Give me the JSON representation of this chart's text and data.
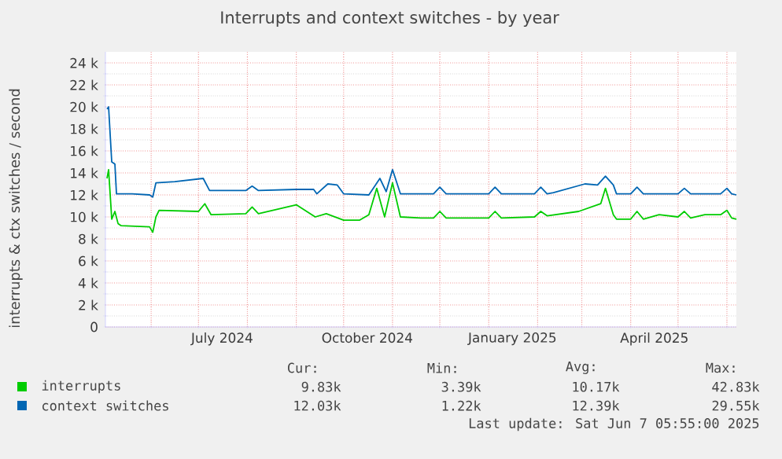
{
  "chart_data": {
    "type": "line",
    "title": "Interrupts and context switches - by year",
    "ylabel": "interrupts & ctx switches / second",
    "xlim": [
      "2024-05-03",
      "2025-06-07"
    ],
    "xticks": [
      {
        "value": "2024-06-01",
        "label": null
      },
      {
        "value": "2024-07-01",
        "label": null
      },
      {
        "value": "2024-08-01",
        "label": null
      },
      {
        "value": "2024-09-01",
        "label": null
      },
      {
        "value": "2024-10-01",
        "label": null
      },
      {
        "value": "2024-11-01",
        "label": null
      },
      {
        "value": "2024-12-01",
        "label": null
      },
      {
        "value": "2025-01-01",
        "label": null
      },
      {
        "value": "2025-02-01",
        "label": null
      },
      {
        "value": "2025-03-01",
        "label": null
      },
      {
        "value": "2025-04-01",
        "label": null
      },
      {
        "value": "2025-05-01",
        "label": null
      },
      {
        "value": "2025-06-01",
        "label": null
      },
      {
        "value": "2024-07-16",
        "label": "July 2024"
      },
      {
        "value": "2024-10-16",
        "label": "October 2024"
      },
      {
        "value": "2025-01-16",
        "label": "January 2025"
      },
      {
        "value": "2025-04-16",
        "label": "April 2025"
      }
    ],
    "ylim": [
      0,
      25000
    ],
    "yticks": [
      0,
      {
        "value": 2000,
        "label": "2 k"
      },
      {
        "value": 4000,
        "label": "4 k"
      },
      {
        "value": 6000,
        "label": "6 k"
      },
      {
        "value": 8000,
        "label": "8 k"
      },
      {
        "value": 10000,
        "label": "10 k"
      },
      {
        "value": 12000,
        "label": "12 k"
      },
      {
        "value": 14000,
        "label": "14 k"
      },
      {
        "value": 16000,
        "label": "16 k"
      },
      {
        "value": 18000,
        "label": "18 k"
      },
      {
        "value": 20000,
        "label": "20 k"
      },
      {
        "value": 22000,
        "label": "22 k"
      },
      {
        "value": 24000,
        "label": "24 k"
      }
    ],
    "grid": true,
    "legend": "bottom",
    "series": [
      {
        "name": "interrupts",
        "color": "#00cc00",
        "x": [
          "2024-05-04",
          "2024-05-05",
          "2024-05-07",
          "2024-05-09",
          "2024-05-11",
          "2024-05-13",
          "2024-05-31",
          "2024-06-02",
          "2024-06-04",
          "2024-06-06",
          "2024-07-01",
          "2024-07-05",
          "2024-07-09",
          "2024-07-31",
          "2024-08-04",
          "2024-08-08",
          "2024-09-01",
          "2024-09-13",
          "2024-09-20",
          "2024-10-01",
          "2024-10-11",
          "2024-10-17",
          "2024-10-22",
          "2024-10-27",
          "2024-11-01",
          "2024-11-06",
          "2024-11-19",
          "2024-11-27",
          "2024-12-01",
          "2024-12-05",
          "2025-01-01",
          "2025-01-05",
          "2025-01-09",
          "2025-01-30",
          "2025-02-03",
          "2025-02-07",
          "2025-02-27",
          "2025-03-13",
          "2025-03-16",
          "2025-03-21",
          "2025-03-23",
          "2025-04-01",
          "2025-04-05",
          "2025-04-09",
          "2025-04-19",
          "2025-05-01",
          "2025-05-05",
          "2025-05-09",
          "2025-05-18",
          "2025-05-28",
          "2025-06-01",
          "2025-06-04",
          "2025-06-07"
        ],
        "values": [
          13500,
          14300,
          9800,
          10500,
          9400,
          9200,
          9100,
          8600,
          10000,
          10600,
          10500,
          11200,
          10200,
          10300,
          10900,
          10300,
          11100,
          10000,
          10300,
          9700,
          9700,
          10200,
          12600,
          10000,
          13100,
          10000,
          9900,
          9900,
          10500,
          9900,
          9900,
          10500,
          9900,
          10000,
          10500,
          10100,
          10500,
          11200,
          12600,
          10200,
          9800,
          9800,
          10500,
          9800,
          10200,
          10000,
          10500,
          9900,
          10200,
          10200,
          10600,
          9900,
          9800
        ]
      },
      {
        "name": "context switches",
        "color": "#0066b3",
        "x": [
          "2024-05-04",
          "2024-05-05",
          "2024-05-07",
          "2024-05-09",
          "2024-05-10",
          "2024-05-20",
          "2024-05-31",
          "2024-06-02",
          "2024-06-04",
          "2024-06-16",
          "2024-07-04",
          "2024-07-08",
          "2024-07-31",
          "2024-08-04",
          "2024-08-08",
          "2024-09-01",
          "2024-09-12",
          "2024-09-14",
          "2024-09-21",
          "2024-09-27",
          "2024-10-01",
          "2024-10-17",
          "2024-10-24",
          "2024-10-28",
          "2024-11-01",
          "2024-11-06",
          "2024-11-27",
          "2024-12-01",
          "2024-12-05",
          "2025-01-01",
          "2025-01-05",
          "2025-01-09",
          "2025-01-30",
          "2025-02-03",
          "2025-02-07",
          "2025-02-11",
          "2025-03-03",
          "2025-03-11",
          "2025-03-16",
          "2025-03-21",
          "2025-03-23",
          "2025-04-01",
          "2025-04-05",
          "2025-04-09",
          "2025-05-01",
          "2025-05-05",
          "2025-05-09",
          "2025-05-28",
          "2025-06-01",
          "2025-06-04",
          "2025-06-07"
        ],
        "values": [
          19800,
          20000,
          15000,
          14800,
          12100,
          12100,
          12000,
          11800,
          13100,
          13200,
          13500,
          12400,
          12400,
          12800,
          12400,
          12500,
          12500,
          12100,
          13000,
          12900,
          12100,
          12000,
          13500,
          12300,
          14300,
          12100,
          12100,
          12700,
          12100,
          12100,
          12700,
          12100,
          12100,
          12700,
          12100,
          12200,
          13000,
          12900,
          13700,
          12900,
          12100,
          12100,
          12700,
          12100,
          12100,
          12600,
          12100,
          12100,
          12600,
          12100,
          12000
        ]
      }
    ],
    "annotations": [
      "Cur:",
      "Min:",
      "Avg:",
      "Max:",
      "9.83k",
      "3.39k",
      "10.17k",
      "42.83k",
      "12.03k",
      "1.22k",
      "12.39k",
      "29.55k",
      "Last update:  Sat Jun  7 05:55:00 2025"
    ]
  }
}
